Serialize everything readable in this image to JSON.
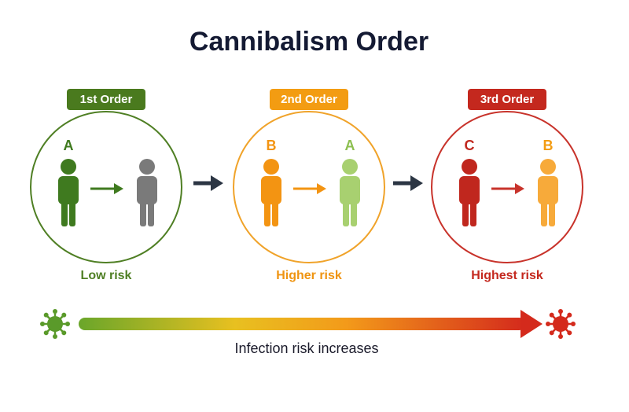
{
  "title": "Cannibalism Order",
  "stages": [
    {
      "badge": "1st Order",
      "letters": [
        "A"
      ],
      "risk": "Low risk"
    },
    {
      "badge": "2nd Order",
      "letters": [
        "B",
        "A"
      ],
      "risk": "Higher risk"
    },
    {
      "badge": "3rd Order",
      "letters": [
        "C",
        "B"
      ],
      "risk": "Highest risk"
    }
  ],
  "footer": "Infection risk increases"
}
